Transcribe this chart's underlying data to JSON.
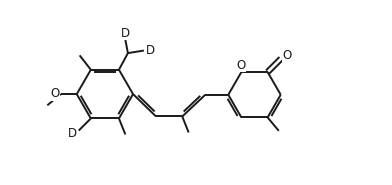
{
  "bg_color": "#ffffff",
  "line_color": "#1a1a1a",
  "line_width": 1.4,
  "font_size": 8.5,
  "fig_width": 3.92,
  "fig_height": 1.85,
  "dpi": 100,
  "xlim": [
    -0.3,
    10.8
  ],
  "ylim": [
    -0.5,
    5.2
  ]
}
